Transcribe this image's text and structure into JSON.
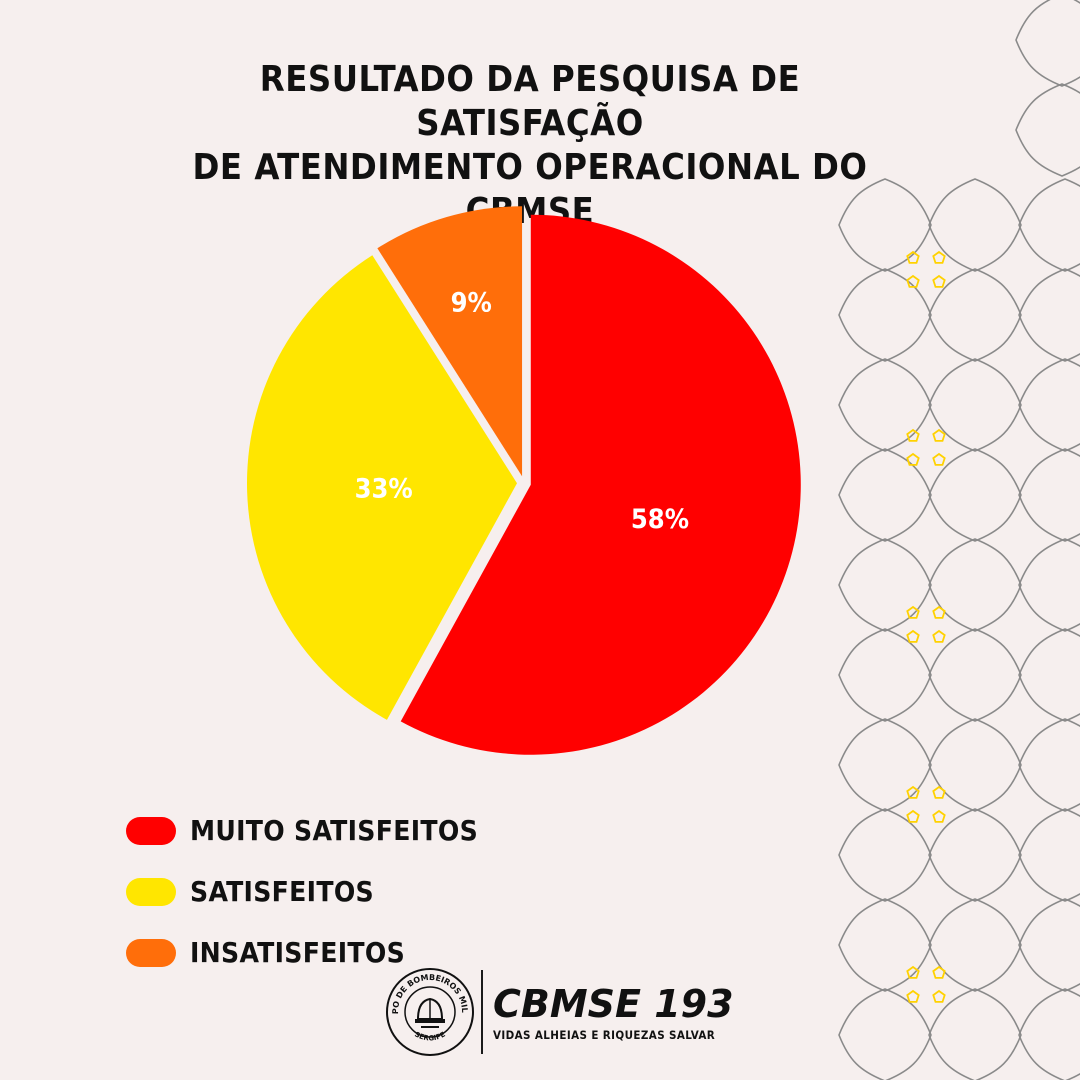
{
  "header": {
    "title": "RESULTADO DA PESQUISA DE SATISFAÇÃO\nDE ATENDIMENTO OPERACIONAL DO\nCBMSE"
  },
  "chart_data": {
    "type": "pie",
    "title": "RESULTADO DA PESQUISA DE SATISFAÇÃO DE ATENDIMENTO OPERACIONAL DO CBMSE",
    "slices": [
      {
        "name": "MUITO SATISFEITOS",
        "value": 58,
        "label": "58%",
        "color": "#ff0000"
      },
      {
        "name": "SATISFEITOS",
        "value": 33,
        "label": "33%",
        "color": "#ffe600"
      },
      {
        "name": "INSATISFEITOS",
        "value": 9,
        "label": "9%",
        "color": "#ff6e0a"
      }
    ],
    "start": "top",
    "direction": "clockwise",
    "legend": "bottom-left"
  },
  "legend": {
    "items": [
      {
        "label": "MUITO SATISFEITOS",
        "color": "#ff0000"
      },
      {
        "label": "SATISFEITOS",
        "color": "#ffe600"
      },
      {
        "label": "INSATISFEITOS",
        "color": "#ff6e0a"
      }
    ]
  },
  "logo": {
    "seal_icon": "cbmse-seal-icon",
    "seal_top_text": "CORPO DE BOMBEIROS MILITAR",
    "seal_bottom_text": "SERGIPE",
    "brand": "CBMSE 193",
    "motto": "VIDAS ALHEIAS E RIQUEZAS SALVAR"
  },
  "decoration": {
    "pattern_icon": "floral-line-pattern-icon",
    "line_color": "#8a8a8a",
    "accent_color": "#ffd200"
  }
}
